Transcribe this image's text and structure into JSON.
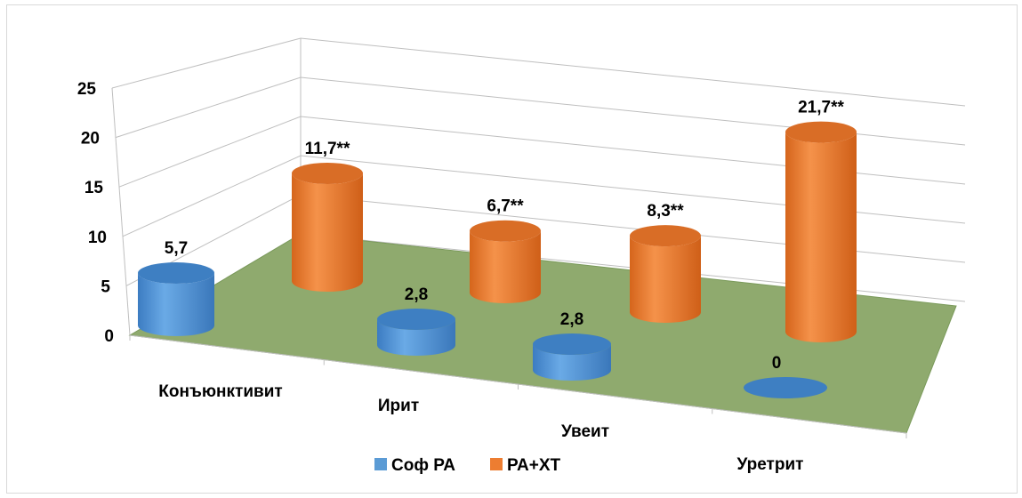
{
  "chart_data": {
    "type": "bar",
    "style": "3d-cylinder",
    "title": "",
    "xlabel": "",
    "ylabel": "",
    "categories": [
      "Конъюнктивит",
      "Ирит",
      "Увеит",
      "Уретрит"
    ],
    "series": [
      {
        "name": "Соф РА",
        "color": "#5b9bd5",
        "values": [
          5.7,
          2.8,
          2.8,
          0
        ],
        "labels": [
          "5,7",
          "2,8",
          "2,8",
          "0"
        ]
      },
      {
        "name": "РА+ХТ",
        "color": "#ed7d31",
        "values": [
          11.7,
          6.7,
          8.3,
          21.7
        ],
        "labels": [
          "11,7**",
          "6,7**",
          "8,3**",
          "21,7**"
        ]
      }
    ],
    "ylim": [
      0,
      25
    ],
    "yticks": [
      0,
      5,
      10,
      15,
      20,
      25
    ],
    "grid": true,
    "floor_color": "#8faa6e",
    "legend_position": "bottom"
  }
}
